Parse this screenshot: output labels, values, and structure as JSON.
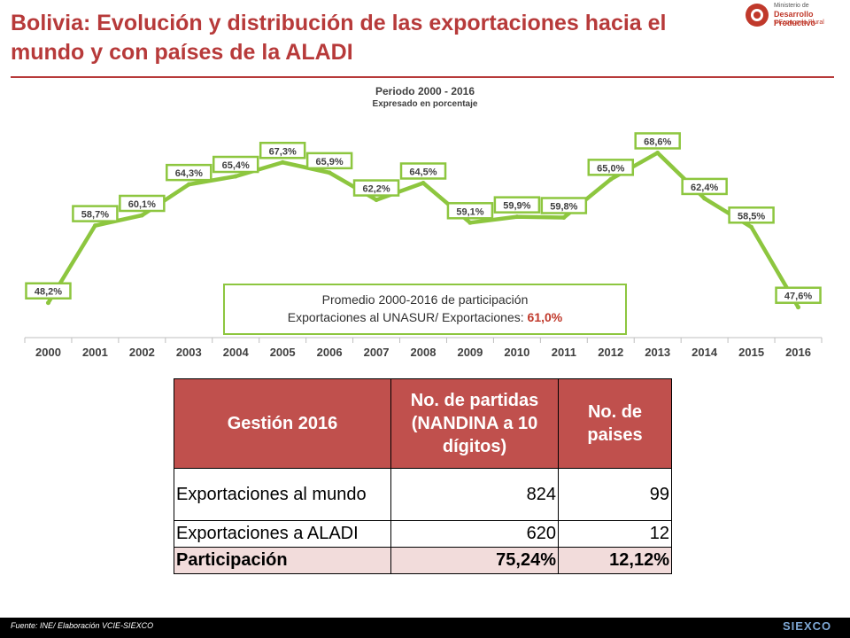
{
  "slide": {
    "title": "Bolivia: Evolución y distribución de las exportaciones hacia el mundo y con países de la ALADI",
    "accent_color": "#b73a3a",
    "logo": {
      "icon": "ministry-seal-icon",
      "line1": "Ministerio de",
      "line2": "Desarrollo Productivo",
      "line3": "y Economía Plural"
    }
  },
  "chart_data": {
    "type": "line",
    "title": "Periodo 2000 - 2016",
    "subtitle": "Expresado en porcentaje",
    "categories": [
      "2000",
      "2001",
      "2002",
      "2003",
      "2004",
      "2005",
      "2006",
      "2007",
      "2008",
      "2009",
      "2010",
      "2011",
      "2012",
      "2013",
      "2014",
      "2015",
      "2016"
    ],
    "values": [
      48.2,
      58.7,
      60.1,
      64.3,
      65.4,
      67.3,
      65.9,
      62.2,
      64.5,
      59.1,
      59.9,
      59.8,
      65.0,
      68.6,
      62.4,
      58.5,
      47.6
    ],
    "labels": [
      "48,2%",
      "58,7%",
      "60,1%",
      "64,3%",
      "65,4%",
      "67,3%",
      "65,9%",
      "62,2%",
      "64,5%",
      "59,1%",
      "59,9%",
      "59,8%",
      "65,0%",
      "68,6%",
      "62,4%",
      "58,5%",
      "47,6%"
    ],
    "ylim": [
      46,
      69.5
    ],
    "line_color": "#8dc63f",
    "legend": "none",
    "grid": false
  },
  "callout": {
    "line1": "Promedio 2000-2016 de participación",
    "line2_prefix": "Exportaciones al UNASUR/ Exportaciones: ",
    "line2_value": "61,0%"
  },
  "table": {
    "headers": [
      "Gestión 2016",
      "No. de partidas (NANDINA a 10 dígitos)",
      "No. de paises"
    ],
    "header_color": "#c0504d",
    "rows": [
      {
        "label": "Exportaciones al mundo",
        "partidas": "824",
        "paises": "99"
      },
      {
        "label": "Exportaciones a ALADI",
        "partidas": "620",
        "paises": "12"
      },
      {
        "label": "Participación",
        "partidas": "75,24%",
        "paises": "12,12%"
      }
    ]
  },
  "footer": {
    "source": "Fuente: INE/ Elaboración VCIE-SIEXCO",
    "brand": "SIEXCO"
  }
}
